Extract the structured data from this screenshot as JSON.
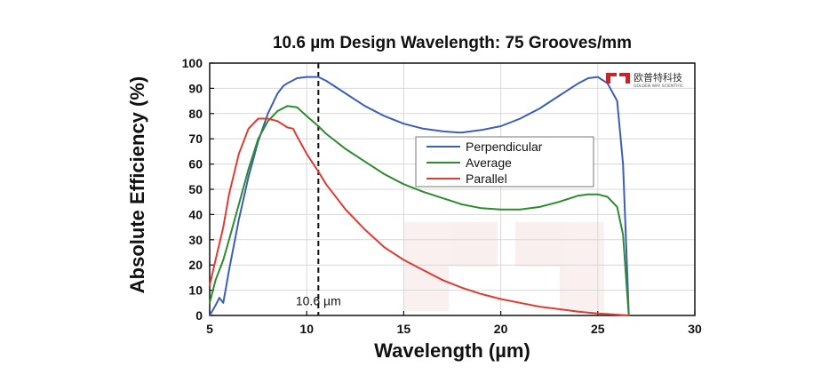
{
  "chart_data": {
    "type": "line",
    "title": "10.6 µm Design Wavelength: 75 Grooves/mm",
    "xlabel": "Wavelength (µm)",
    "ylabel": "Absolute Efficiency (%)",
    "xlim": [
      5,
      30
    ],
    "ylim": [
      0,
      100
    ],
    "xticks": [
      5,
      10,
      15,
      20,
      25,
      30
    ],
    "yticks": [
      0,
      10,
      20,
      30,
      40,
      50,
      60,
      70,
      80,
      90,
      100
    ],
    "grid": true,
    "legend_position": "center",
    "annotation": {
      "x": 10.6,
      "label": "10.6 µm",
      "style": "dashed-vertical-line"
    },
    "series": [
      {
        "name": "Perpendicular",
        "color": "#3a5fb8",
        "x": [
          5.0,
          5.3,
          5.5,
          5.7,
          6.0,
          6.5,
          7.0,
          7.5,
          8.0,
          8.5,
          8.8,
          9.0,
          9.5,
          10.0,
          10.6,
          11.0,
          12.0,
          13.0,
          14.0,
          15.0,
          16.0,
          17.0,
          17.8,
          18.0,
          19.0,
          20.0,
          21.0,
          22.0,
          23.0,
          24.0,
          24.5,
          25.0,
          25.5,
          26.0,
          26.3,
          26.5,
          26.6
        ],
        "y": [
          0,
          4,
          7,
          5,
          18,
          38,
          55,
          69,
          80,
          88,
          91,
          92,
          94,
          94.5,
          94.5,
          93,
          88,
          83,
          79,
          76,
          74,
          73,
          72.5,
          72.5,
          73.5,
          75,
          78,
          82,
          87,
          92,
          94,
          94.5,
          92,
          85,
          60,
          20,
          0
        ]
      },
      {
        "name": "Average",
        "color": "#2e8b2e",
        "x": [
          5.0,
          5.3,
          5.7,
          6.0,
          6.5,
          7.0,
          7.5,
          8.0,
          8.5,
          9.0,
          9.5,
          10.0,
          10.6,
          11.0,
          12.0,
          13.0,
          14.0,
          15.0,
          16.0,
          17.0,
          18.0,
          19.0,
          20.0,
          21.0,
          22.0,
          23.0,
          24.0,
          24.5,
          25.0,
          25.5,
          26.0,
          26.3,
          26.5,
          26.6
        ],
        "y": [
          5,
          14,
          22,
          30,
          44,
          58,
          70,
          77,
          81,
          83,
          82.5,
          79,
          75,
          72,
          66,
          61,
          56,
          52,
          49,
          46.5,
          44,
          42.5,
          42,
          42,
          43,
          45,
          47.5,
          48,
          48,
          47,
          43,
          32,
          10,
          0
        ]
      },
      {
        "name": "Parallel",
        "color": "#e03a33",
        "x": [
          5.0,
          5.3,
          5.7,
          6.0,
          6.5,
          7.0,
          7.5,
          8.0,
          8.5,
          9.0,
          9.3,
          9.5,
          10.0,
          10.6,
          11.0,
          12.0,
          13.0,
          14.0,
          15.0,
          16.0,
          17.0,
          18.0,
          19.0,
          20.0,
          21.0,
          22.0,
          23.0,
          24.0,
          25.0,
          26.0,
          26.6
        ],
        "y": [
          12,
          22,
          35,
          48,
          64,
          74,
          78,
          78,
          77,
          74.5,
          74,
          71,
          64,
          57,
          52,
          42,
          34,
          27,
          22,
          18,
          14,
          11,
          8.5,
          6.5,
          5,
          3.5,
          2.5,
          1.5,
          0.8,
          0.3,
          0
        ]
      }
    ]
  },
  "logo": {
    "text_cn": "欧普特科技",
    "text_en": "GOLDEN WAY SCIENTIFIC",
    "color": "#c0282d"
  }
}
